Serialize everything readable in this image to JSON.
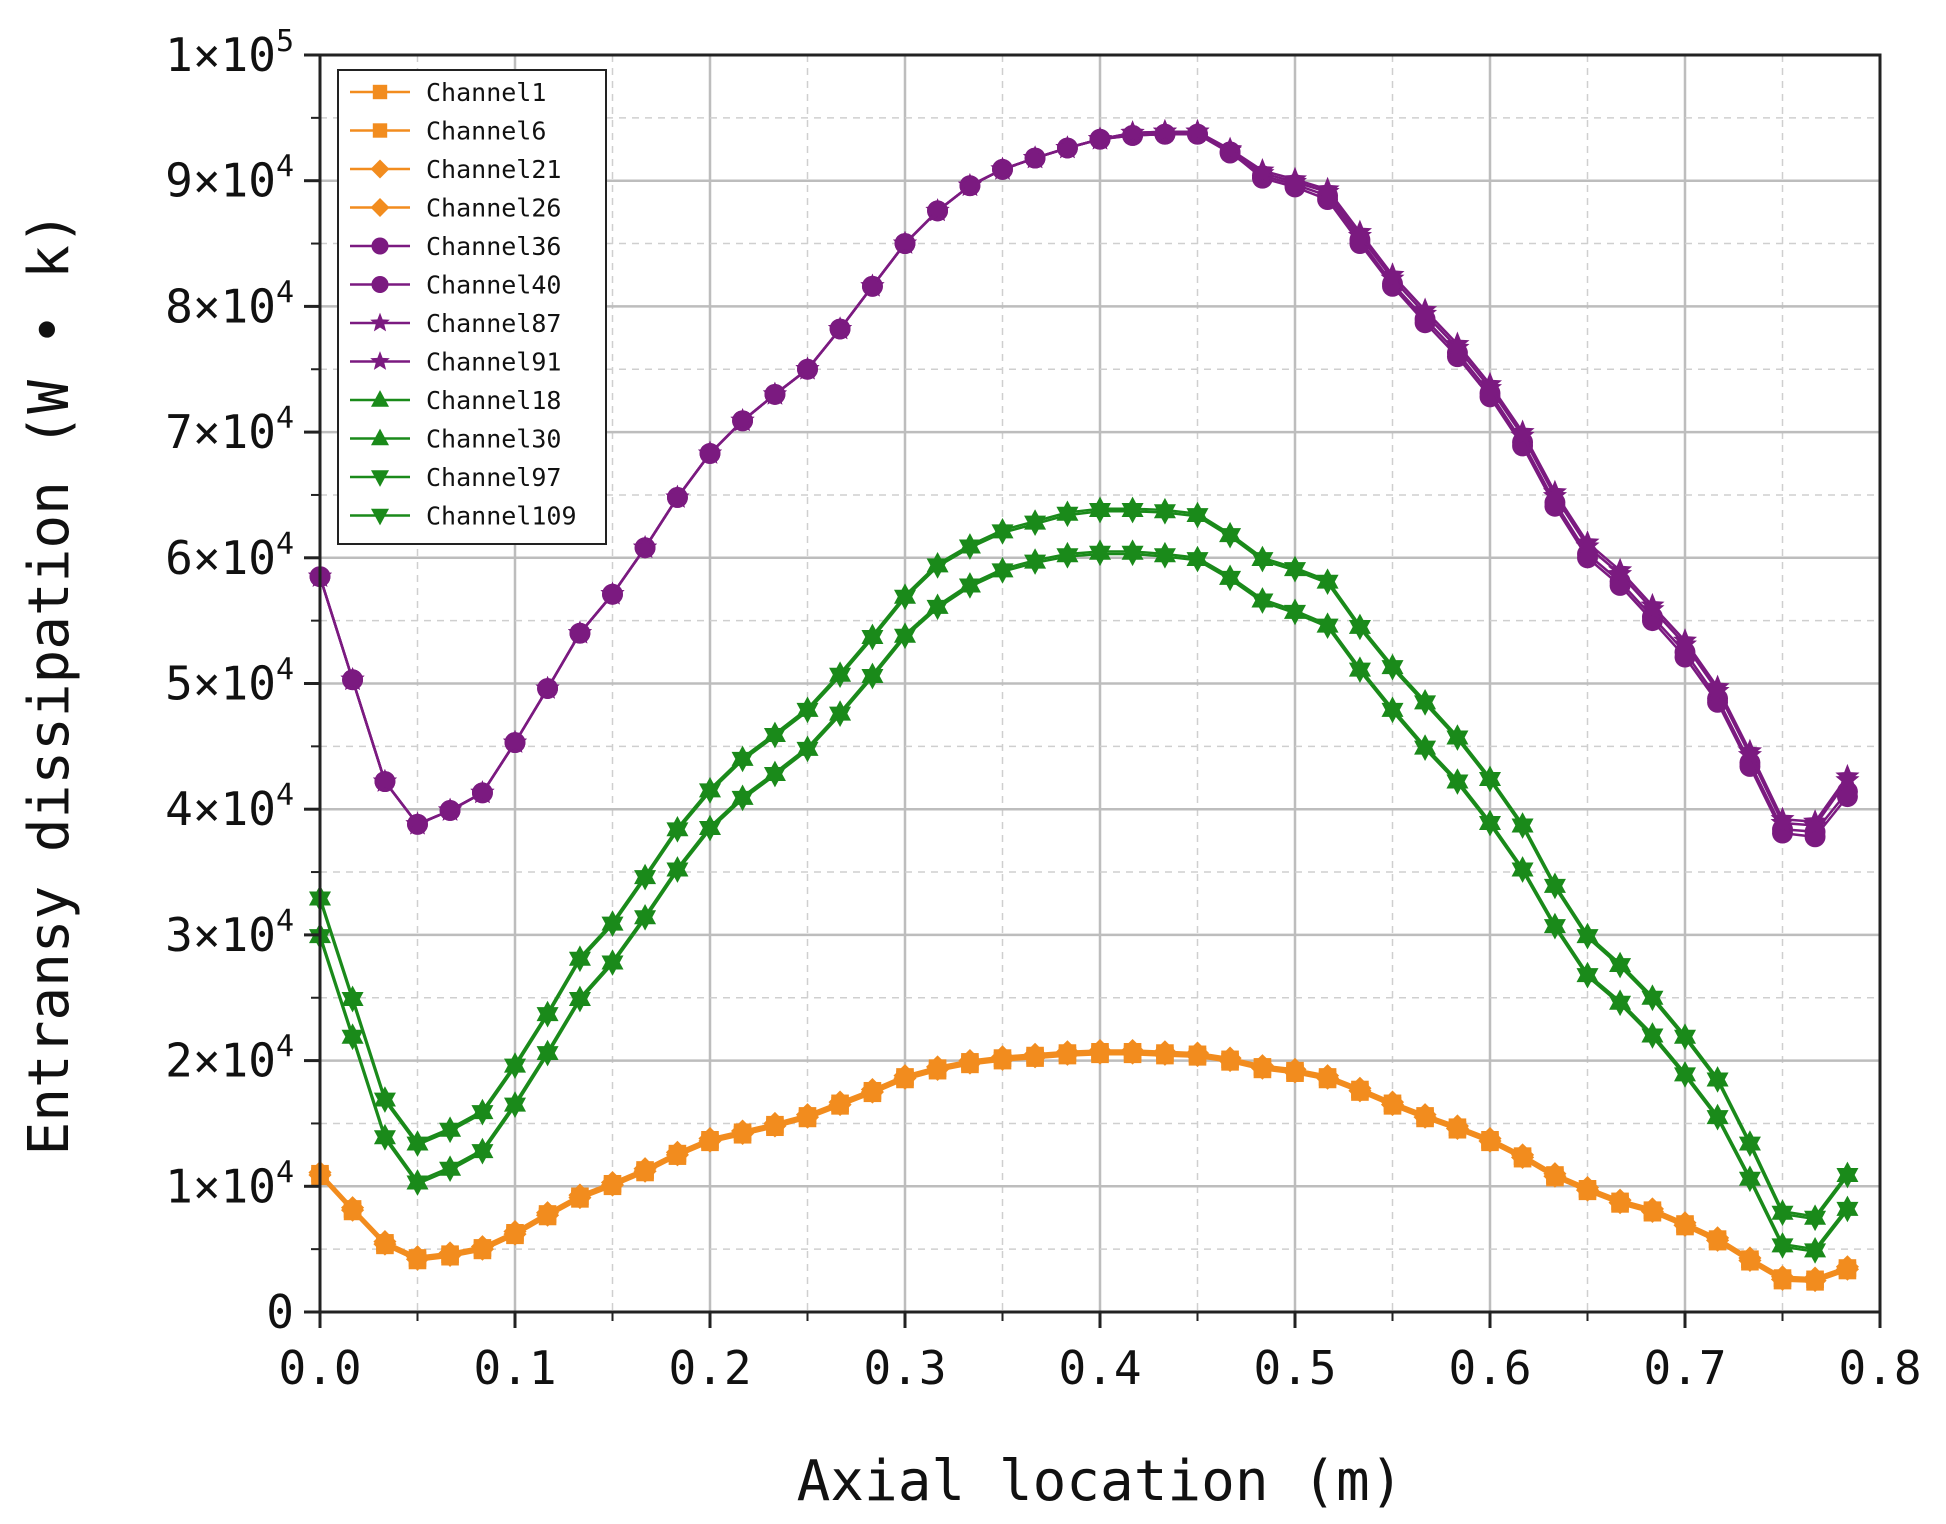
{
  "chart_data": {
    "type": "line",
    "xlabel": "Axial location (m)",
    "ylabel": "Entransy dissipation (W • k)",
    "xlim": [
      0,
      0.8
    ],
    "ylim": [
      0,
      100000
    ],
    "x_ticks": [
      0.0,
      0.1,
      0.2,
      0.3,
      0.4,
      0.5,
      0.6,
      0.7,
      0.8
    ],
    "x_tick_labels": [
      "0.0",
      "0.1",
      "0.2",
      "0.3",
      "0.4",
      "0.5",
      "0.6",
      "0.7",
      "0.8"
    ],
    "y_ticks": [
      0,
      10000,
      20000,
      30000,
      40000,
      50000,
      60000,
      70000,
      80000,
      90000,
      100000
    ],
    "y_tick_labels": [
      {
        "mant": "0",
        "exp": ""
      },
      {
        "mant": "1×10",
        "exp": "4"
      },
      {
        "mant": "2×10",
        "exp": "4"
      },
      {
        "mant": "3×10",
        "exp": "4"
      },
      {
        "mant": "4×10",
        "exp": "4"
      },
      {
        "mant": "5×10",
        "exp": "4"
      },
      {
        "mant": "6×10",
        "exp": "4"
      },
      {
        "mant": "7×10",
        "exp": "4"
      },
      {
        "mant": "8×10",
        "exp": "4"
      },
      {
        "mant": "9×10",
        "exp": "4"
      },
      {
        "mant": "1×10",
        "exp": "5"
      }
    ],
    "grid": true,
    "legend_position": "top-left",
    "x": [
      0,
      0.0167,
      0.0333,
      0.05,
      0.0667,
      0.0833,
      0.1,
      0.1167,
      0.1333,
      0.15,
      0.1667,
      0.1833,
      0.2,
      0.2167,
      0.2333,
      0.25,
      0.2667,
      0.2833,
      0.3,
      0.3167,
      0.3333,
      0.35,
      0.3667,
      0.3833,
      0.4,
      0.4167,
      0.4333,
      0.45,
      0.4667,
      0.4833,
      0.5,
      0.5167,
      0.5333,
      0.55,
      0.5667,
      0.5833,
      0.6,
      0.6167,
      0.6333,
      0.65,
      0.6667,
      0.6833,
      0.7,
      0.7167,
      0.7333,
      0.75,
      0.7667,
      0.7833
    ],
    "series": [
      {
        "name": "Channel1",
        "color": "#f28c1e",
        "marker": "square",
        "values": [
          11000,
          8200,
          5500,
          4300,
          4600,
          5100,
          6300,
          7800,
          9200,
          10200,
          11300,
          12600,
          13700,
          14300,
          14900,
          15600,
          16600,
          17600,
          18700,
          19400,
          19900,
          20200,
          20400,
          20600,
          20700,
          20700,
          20600,
          20500,
          20100,
          19500,
          19200,
          18700,
          17700,
          16600,
          15600,
          14700,
          13700,
          12400,
          10900,
          9800,
          8800,
          8100,
          7000,
          5800,
          4200,
          2700,
          2600,
          3500
        ]
      },
      {
        "name": "Channel6",
        "color": "#f28c1e",
        "marker": "square",
        "values": [
          10800,
          8000,
          5300,
          4100,
          4400,
          4900,
          6100,
          7600,
          9000,
          10000,
          11100,
          12400,
          13500,
          14100,
          14700,
          15400,
          16400,
          17400,
          18500,
          19200,
          19700,
          20000,
          20200,
          20400,
          20500,
          20500,
          20400,
          20300,
          19900,
          19300,
          19000,
          18500,
          17500,
          16400,
          15400,
          14500,
          13500,
          12200,
          10700,
          9600,
          8600,
          7900,
          6800,
          5600,
          4000,
          2500,
          2400,
          3300
        ]
      },
      {
        "name": "Channel21",
        "color": "#f28c1e",
        "marker": "diamond",
        "values": [
          11100,
          8300,
          5600,
          4400,
          4700,
          5200,
          6400,
          7900,
          9300,
          10300,
          11400,
          12700,
          13800,
          14400,
          15000,
          15700,
          16700,
          17700,
          18800,
          19500,
          20000,
          20300,
          20500,
          20700,
          20800,
          20800,
          20700,
          20600,
          20200,
          19600,
          19300,
          18800,
          17800,
          16700,
          15700,
          14800,
          13800,
          12500,
          11000,
          9900,
          8900,
          8200,
          7100,
          5900,
          4300,
          2800,
          2700,
          3600
        ]
      },
      {
        "name": "Channel26",
        "color": "#f28c1e",
        "marker": "diamond",
        "values": [
          10900,
          8100,
          5400,
          4200,
          4500,
          5000,
          6200,
          7700,
          9100,
          10100,
          11200,
          12500,
          13600,
          14200,
          14800,
          15500,
          16500,
          17500,
          18600,
          19300,
          19800,
          20100,
          20300,
          20500,
          20600,
          20600,
          20500,
          20400,
          20000,
          19400,
          19100,
          18600,
          17600,
          16500,
          15500,
          14600,
          13600,
          12300,
          10800,
          9700,
          8700,
          8000,
          6900,
          5700,
          4100,
          2600,
          2500,
          3400
        ]
      },
      {
        "name": "Channel36",
        "color": "#7b1a80",
        "marker": "circle",
        "values": [
          58500,
          50300,
          42200,
          38800,
          39900,
          41300,
          45300,
          49600,
          54000,
          57100,
          60800,
          64800,
          68300,
          70900,
          73000,
          75000,
          78200,
          81600,
          85000,
          87600,
          89600,
          90900,
          91800,
          92600,
          93300,
          93600,
          93700,
          93700,
          92200,
          90400,
          89700,
          88800,
          85300,
          81800,
          79000,
          76300,
          73100,
          69200,
          64400,
          60300,
          58100,
          55300,
          52500,
          48800,
          43700,
          38400,
          38200,
          41400
        ]
      },
      {
        "name": "Channel40",
        "color": "#7b1a80",
        "marker": "circle",
        "values": [
          58500,
          50300,
          42200,
          38800,
          39900,
          41300,
          45300,
          49600,
          54000,
          57100,
          60800,
          64800,
          68300,
          70900,
          73000,
          75000,
          78200,
          81600,
          85000,
          87600,
          89600,
          90900,
          91800,
          92600,
          93300,
          93600,
          93700,
          93700,
          92300,
          90200,
          89500,
          88500,
          85000,
          81600,
          78700,
          76000,
          72800,
          68900,
          64100,
          60000,
          57800,
          55000,
          52100,
          48500,
          43400,
          38100,
          37800,
          41000
        ]
      },
      {
        "name": "Channel87",
        "color": "#7b1a80",
        "marker": "star",
        "values": [
          58500,
          50300,
          42200,
          38800,
          39900,
          41300,
          45300,
          49600,
          54000,
          57100,
          60800,
          64800,
          68300,
          70900,
          73000,
          75000,
          78200,
          81600,
          85000,
          87600,
          89600,
          90900,
          91800,
          92600,
          93300,
          93800,
          93900,
          93900,
          92500,
          90800,
          90100,
          89300,
          85900,
          82500,
          79700,
          77000,
          73800,
          70000,
          65200,
          61200,
          59000,
          56200,
          53400,
          49700,
          44600,
          39200,
          39000,
          42600
        ]
      },
      {
        "name": "Channel91",
        "color": "#7b1a80",
        "marker": "star",
        "values": [
          58500,
          50300,
          42200,
          38800,
          39900,
          41300,
          45300,
          49600,
          54000,
          57100,
          60800,
          64800,
          68300,
          70900,
          73000,
          75000,
          78200,
          81600,
          85000,
          87600,
          89600,
          90900,
          91800,
          92600,
          93300,
          93800,
          93900,
          93900,
          92400,
          90600,
          89900,
          89100,
          85600,
          82200,
          79400,
          76700,
          73500,
          69700,
          64900,
          60900,
          58700,
          55900,
          53100,
          49400,
          44300,
          38900,
          38700,
          42300
        ]
      },
      {
        "name": "Channel18",
        "color": "#1a8a1a",
        "marker": "triangle-up",
        "values": [
          33000,
          25000,
          17000,
          13500,
          14600,
          16000,
          19700,
          23800,
          28200,
          31000,
          34700,
          38500,
          41600,
          44100,
          46000,
          48000,
          50800,
          53800,
          57000,
          59500,
          61000,
          62200,
          62900,
          63600,
          63900,
          63900,
          63800,
          63500,
          61900,
          60000,
          59200,
          58200,
          54600,
          51400,
          48600,
          45800,
          42500,
          38800,
          34000,
          30000,
          27700,
          25100,
          22000,
          18600,
          13500,
          8000,
          7600,
          11000
        ]
      },
      {
        "name": "Channel30",
        "color": "#1a8a1a",
        "marker": "triangle-up",
        "values": [
          30000,
          22000,
          14000,
          10400,
          11500,
          12900,
          16600,
          20700,
          25000,
          27900,
          31500,
          35300,
          38600,
          41000,
          42900,
          44900,
          47700,
          50700,
          53900,
          56200,
          57900,
          59100,
          59800,
          60300,
          60500,
          60500,
          60300,
          60000,
          58500,
          56700,
          55800,
          54700,
          51200,
          48000,
          45000,
          42300,
          39000,
          35300,
          30800,
          26900,
          24700,
          22100,
          19000,
          15600,
          10700,
          5400,
          5000,
          8300
        ]
      },
      {
        "name": "Channel97",
        "color": "#1a8a1a",
        "marker": "triangle-down",
        "values": [
          32800,
          24800,
          16800,
          13300,
          14400,
          15800,
          19500,
          23600,
          28000,
          30800,
          34500,
          38300,
          41400,
          43900,
          45800,
          47800,
          50600,
          53600,
          56800,
          59300,
          60800,
          62000,
          62700,
          63400,
          63700,
          63700,
          63600,
          63300,
          61700,
          59800,
          59000,
          58000,
          54400,
          51200,
          48400,
          45600,
          42300,
          38600,
          33800,
          29800,
          27500,
          24900,
          21800,
          18400,
          13300,
          7800,
          7400,
          10800
        ]
      },
      {
        "name": "Channel109",
        "color": "#1a8a1a",
        "marker": "triangle-down",
        "values": [
          29800,
          21800,
          13800,
          10200,
          11300,
          12700,
          16400,
          20500,
          24800,
          27700,
          31300,
          35100,
          38400,
          40800,
          42700,
          44700,
          47500,
          50500,
          53700,
          56000,
          57700,
          58900,
          59600,
          60100,
          60300,
          60300,
          60100,
          59800,
          58300,
          56500,
          55600,
          54500,
          51000,
          47800,
          44800,
          42100,
          38800,
          35100,
          30600,
          26700,
          24500,
          21900,
          18800,
          15400,
          10500,
          5200,
          4800,
          8100
        ]
      }
    ]
  }
}
